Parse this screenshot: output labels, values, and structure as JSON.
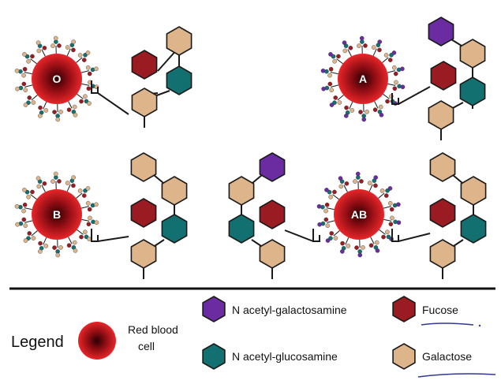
{
  "colors": {
    "n_acetyl_galactosamine": "#6a2ca0",
    "fucose": "#9b1b22",
    "n_acetyl_glucosamine": "#127070",
    "galactose": "#deb48b",
    "rbc_outer": "#e8262a",
    "rbc_inner": "#2a0004",
    "stroke": "#1a1a1a",
    "underline": "#2e3a8c"
  },
  "cells": [
    {
      "label": "O",
      "antigen": [
        "fucose",
        "galactose",
        "n_acetyl_glucosamine",
        "galactose"
      ]
    },
    {
      "label": "A",
      "antigen": [
        "n_acetyl_galactosamine",
        "galactose",
        "fucose",
        "galactose",
        "n_acetyl_glucosamine",
        "galactose"
      ]
    },
    {
      "label": "B",
      "antigen": [
        "galactose",
        "galactose",
        "fucose",
        "galactose",
        "n_acetyl_glucosamine",
        "galactose"
      ]
    },
    {
      "label": "AB",
      "antigen_left": [
        "n_acetyl_galactosamine",
        "galactose",
        "fucose",
        "galactose",
        "n_acetyl_glucosamine",
        "galactose"
      ],
      "antigen_right": [
        "galactose",
        "galactose",
        "fucose",
        "galactose",
        "n_acetyl_glucosamine",
        "galactose"
      ]
    }
  ],
  "legend": {
    "title": "Legend",
    "rbc_label_line1": "Red blood",
    "rbc_label_line2": "cell",
    "items": [
      {
        "key": "n_acetyl_galactosamine",
        "label": "N acetyl-galactosamine"
      },
      {
        "key": "fucose",
        "label": "Fucose"
      },
      {
        "key": "n_acetyl_glucosamine",
        "label": "N acetyl-glucosamine"
      },
      {
        "key": "galactose",
        "label": "Galactose"
      }
    ]
  }
}
